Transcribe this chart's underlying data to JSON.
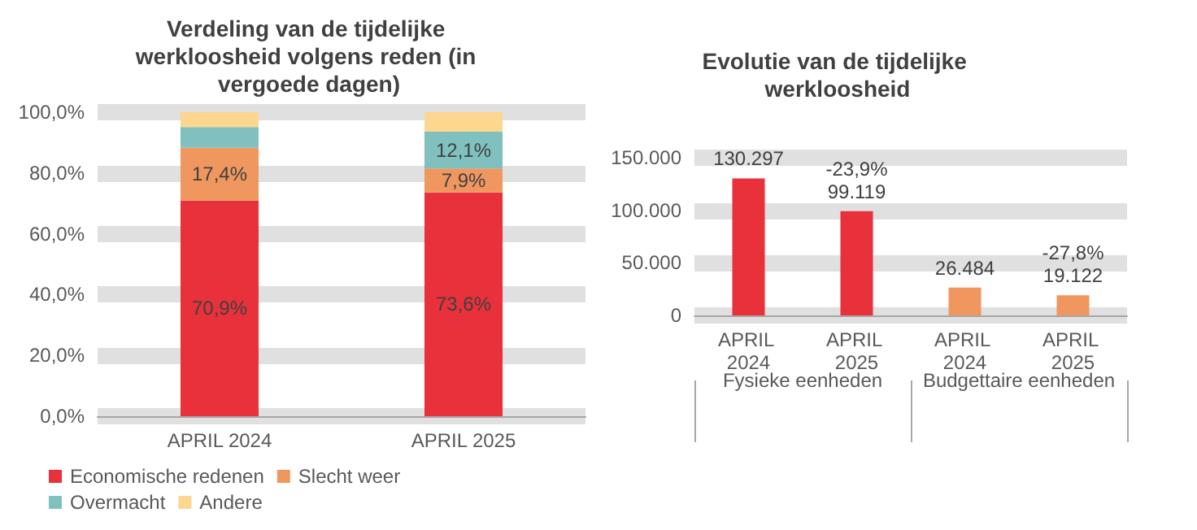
{
  "chart_data": [
    {
      "type": "bar",
      "title": "Verdeling van de tijdelijke werkloosheid volgens reden (in vergoede dagen)",
      "categories": [
        "APRIL 2024",
        "APRIL 2025"
      ],
      "stacked": true,
      "series": [
        {
          "name": "Economische redenen",
          "color": "#e8313a",
          "values": [
            70.9,
            73.6
          ],
          "value_labels": [
            "70,9%",
            "73,6%"
          ]
        },
        {
          "name": "Slecht weer",
          "color": "#f0975f",
          "values": [
            17.4,
            7.9
          ],
          "value_labels": [
            "17,4%",
            "7,9%"
          ]
        },
        {
          "name": "Overmacht",
          "color": "#80c1c0",
          "values": [
            6.8,
            12.1
          ],
          "value_labels": [
            null,
            "12,1%"
          ]
        },
        {
          "name": "Andere",
          "color": "#fdd78f",
          "values": [
            4.9,
            6.4
          ],
          "value_labels": [
            null,
            null
          ]
        }
      ],
      "ylim": [
        0,
        100
      ],
      "yticks": [
        {
          "value": 0,
          "label": "0,0%"
        },
        {
          "value": 20,
          "label": "20,0%"
        },
        {
          "value": 40,
          "label": "40,0%"
        },
        {
          "value": 60,
          "label": "60,0%"
        },
        {
          "value": 80,
          "label": "80,0%"
        },
        {
          "value": 100,
          "label": "100,0%"
        }
      ],
      "grid": "y",
      "legend": "bottom"
    },
    {
      "type": "bar",
      "title": "Evolutie van de tijdelijke werkloosheid",
      "categories": [
        "APRIL 2024",
        "APRIL 2025",
        "APRIL 2024",
        "APRIL 2025"
      ],
      "values": [
        130297,
        99119,
        26484,
        19122
      ],
      "colors": [
        "#e8313a",
        "#e8313a",
        "#f0975f",
        "#f0975f"
      ],
      "value_labels": [
        "130.297",
        "-23,9%\n99.119",
        "26.484",
        "-27,8%\n19.122"
      ],
      "annotations": [
        "Fysieke eenheden",
        "Budgettaire eenheden"
      ],
      "ylim": [
        0,
        150000
      ],
      "yticks": [
        {
          "value": 0,
          "label": "0"
        },
        {
          "value": 50000,
          "label": "50.000"
        },
        {
          "value": 100000,
          "label": "100.000"
        },
        {
          "value": 150000,
          "label": "150.000"
        }
      ],
      "grid": "y"
    }
  ]
}
